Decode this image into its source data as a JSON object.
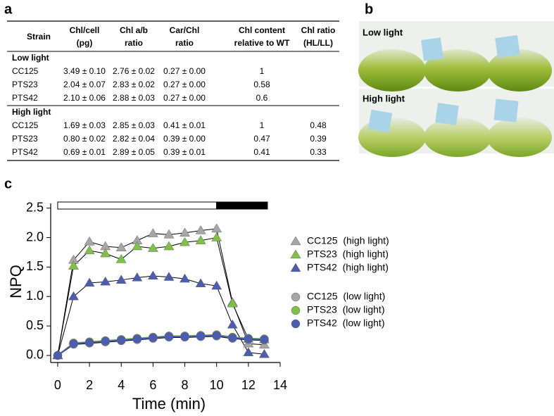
{
  "panels": {
    "a": "a",
    "b": "b",
    "c": "c"
  },
  "table": {
    "header": [
      [
        "Strain"
      ],
      [
        "Chl/cell",
        "(pg)"
      ],
      [
        "Chl a/b",
        "ratio"
      ],
      [
        "Car/Chl",
        "ratio"
      ],
      [
        "Chl content",
        "relative to WT"
      ],
      [
        "Chl ratio",
        "(HL/LL)"
      ]
    ],
    "groups": [
      {
        "label": "Low light",
        "rows": [
          [
            "CC125",
            "3.49 ± 0.10",
            "2.76 ± 0.02",
            "0.27 ± 0.00",
            "1"
          ],
          [
            "PTS23",
            "2.04 ± 0.07",
            "2.83 ± 0.02",
            "0.27 ± 0.00",
            "0.58"
          ],
          [
            "PTS42",
            "2.10 ± 0.06",
            "2.88 ± 0.03",
            "0.27 ± 0.00",
            "0.6"
          ]
        ]
      },
      {
        "label": "High light",
        "rows": [
          [
            "CC125",
            "1.69 ± 0.03",
            "2.85 ± 0.03",
            "0.41 ± 0.01",
            "1",
            "0.48"
          ],
          [
            "PTS23",
            "0.80 ± 0.02",
            "2.82 ± 0.04",
            "0.39 ± 0.00",
            "0.47",
            "0.39"
          ],
          [
            "PTS42",
            "0.69 ± 0.01",
            "2.89 ± 0.05",
            "0.39 ± 0.01",
            "0.41",
            "0.33"
          ]
        ]
      }
    ]
  },
  "photo": {
    "labels": [
      "Low light",
      "High light"
    ]
  },
  "chart_data": {
    "type": "line",
    "xlabel": "Time (min)",
    "ylabel": "NPQ",
    "xlim": [
      -0.44,
      14
    ],
    "xticks": [
      0,
      2,
      4,
      6,
      8,
      10,
      12,
      14
    ],
    "ylim": [
      -0.12,
      2.58
    ],
    "yticks": [
      {
        "value": 0,
        "label": "0.0"
      },
      0.5,
      {
        "value": 1,
        "label": "1.0"
      },
      1.5,
      {
        "value": 2,
        "label": "2.0"
      },
      2.5
    ],
    "x": [
      0,
      1,
      2,
      3,
      4,
      5,
      6,
      7,
      8,
      9,
      10,
      11,
      12,
      13
    ],
    "light_bar": [
      {
        "start": 0,
        "end": 10,
        "color": "#ffffff"
      },
      {
        "start": 10,
        "end": 13.2,
        "color": "#000000"
      }
    ],
    "series": [
      {
        "name": "CC125  (high light)",
        "color": "#a6a6a6",
        "line_color": "#000000",
        "marker": "triangle",
        "values": [
          0,
          1.62,
          1.93,
          1.85,
          1.83,
          1.95,
          2.07,
          2.05,
          2.08,
          2.12,
          2.15,
          0.9,
          0.2,
          0.18
        ]
      },
      {
        "name": "PTS23  (high light)",
        "color": "#7dc242",
        "line_color": "#000000",
        "marker": "triangle",
        "values": [
          0,
          1.52,
          1.78,
          1.73,
          1.63,
          1.85,
          1.82,
          1.85,
          1.92,
          1.95,
          2.0,
          0.88,
          0.28,
          0.27
        ]
      },
      {
        "name": "PTS42  (high light)",
        "color": "#4a5db0",
        "line_color": "#000000",
        "marker": "triangle",
        "values": [
          0,
          1.0,
          1.23,
          1.25,
          1.28,
          1.32,
          1.35,
          1.33,
          1.3,
          1.22,
          1.18,
          0.52,
          0.05,
          0.02
        ]
      },
      {
        "name": "CC125  (low light)",
        "color": "#a6a6a6",
        "line_color": "#000000",
        "marker": "circle",
        "values": [
          0,
          0.19,
          0.21,
          0.23,
          0.25,
          0.27,
          0.29,
          0.31,
          0.31,
          0.32,
          0.33,
          0.29,
          0.27,
          0.26
        ]
      },
      {
        "name": "PTS23  (low light)",
        "color": "#7dc242",
        "line_color": "#7dc242",
        "marker": "circle",
        "values": [
          0,
          0.21,
          0.23,
          0.25,
          0.27,
          0.29,
          0.31,
          0.33,
          0.33,
          0.34,
          0.35,
          0.31,
          0.29,
          0.28
        ]
      },
      {
        "name": "PTS42  (low light)",
        "color": "#4a5db0",
        "line_color": "#4a5db0",
        "marker": "circle",
        "values": [
          0,
          0.2,
          0.22,
          0.24,
          0.26,
          0.28,
          0.3,
          0.32,
          0.32,
          0.33,
          0.34,
          0.3,
          0.28,
          0.27
        ]
      }
    ]
  }
}
